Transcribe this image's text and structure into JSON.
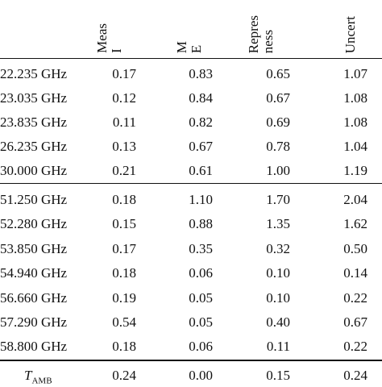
{
  "table": {
    "headers": [
      {
        "line1": "Meas",
        "line2": "I"
      },
      {
        "line1": "M",
        "line2": "E"
      },
      {
        "line1": "Repres",
        "line2": "ness "
      },
      {
        "line1": "Uncert",
        "line2": ""
      }
    ],
    "group1": [
      {
        "label": "22.235 GHz",
        "v1": "0.17",
        "v2": "0.83",
        "v3": "0.65",
        "v4": "1.07"
      },
      {
        "label": "23.035 GHz",
        "v1": "0.12",
        "v2": "0.84",
        "v3": "0.67",
        "v4": "1.08"
      },
      {
        "label": "23.835 GHz",
        "v1": "0.11",
        "v2": "0.82",
        "v3": "0.69",
        "v4": "1.08"
      },
      {
        "label": "26.235 GHz",
        "v1": "0.13",
        "v2": "0.67",
        "v3": "0.78",
        "v4": "1.04"
      },
      {
        "label": "30.000 GHz",
        "v1": "0.21",
        "v2": "0.61",
        "v3": "1.00",
        "v4": "1.19"
      }
    ],
    "group2": [
      {
        "label": "51.250 GHz",
        "v1": "0.18",
        "v2": "1.10",
        "v3": "1.70",
        "v4": "2.04"
      },
      {
        "label": "52.280 GHz",
        "v1": "0.15",
        "v2": "0.88",
        "v3": "1.35",
        "v4": "1.62"
      },
      {
        "label": "53.850 GHz",
        "v1": "0.17",
        "v2": "0.35",
        "v3": "0.32",
        "v4": "0.50"
      },
      {
        "label": "54.940 GHz",
        "v1": "0.18",
        "v2": "0.06",
        "v3": "0.10",
        "v4": "0.14"
      },
      {
        "label": "56.660 GHz",
        "v1": "0.19",
        "v2": "0.05",
        "v3": "0.10",
        "v4": "0.22"
      },
      {
        "label": "57.290 GHz",
        "v1": "0.54",
        "v2": "0.05",
        "v3": "0.40",
        "v4": "0.67"
      },
      {
        "label": "58.800 GHz",
        "v1": "0.18",
        "v2": "0.06",
        "v3": "0.11",
        "v4": "0.22"
      }
    ],
    "tamb": {
      "label_main": "T",
      "label_sub": "AMB",
      "v1": "0.24",
      "v2": "0.00",
      "v3": "0.15",
      "v4": "0.24"
    }
  }
}
